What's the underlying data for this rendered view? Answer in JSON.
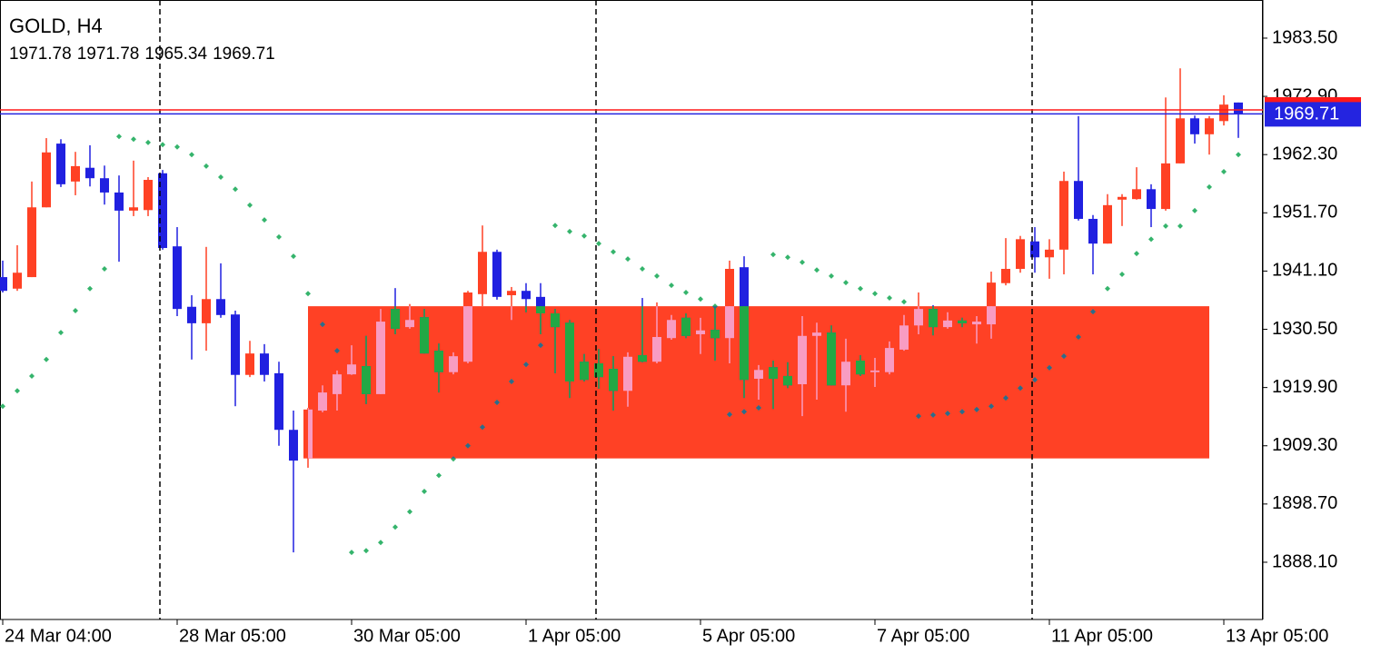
{
  "chart_data": {
    "type": "candlestick",
    "title": "GOLD, H4",
    "ohlc": [
      1971.78,
      1971.78,
      1965.34,
      1969.71
    ],
    "categories": [
      "24 Mar 04:00",
      null,
      null,
      null,
      null,
      null,
      null,
      null,
      null,
      null,
      null,
      null,
      "28 Mar 05:00",
      null,
      null,
      null,
      null,
      null,
      null,
      null,
      null,
      null,
      null,
      null,
      "30 Mar 05:00",
      null,
      null,
      null,
      null,
      null,
      null,
      null,
      null,
      null,
      null,
      null,
      "1 Apr 05:00",
      null,
      null,
      null,
      null,
      null,
      null,
      null,
      null,
      null,
      null,
      null,
      "5 Apr 05:00",
      null,
      null,
      null,
      null,
      null,
      null,
      null,
      null,
      null,
      null,
      null,
      "7 Apr 05:00",
      null,
      null,
      null,
      null,
      null,
      null,
      null,
      null,
      null,
      null,
      null,
      "11 Apr 05:00",
      null,
      null,
      null,
      null,
      null,
      null,
      null,
      null,
      null,
      null,
      null,
      "13 Apr 05:00",
      null
    ],
    "open": [
      1940.0,
      1937.9,
      1940.0,
      1952.7,
      1964.3,
      1957.4,
      1959.9,
      1958.0,
      1955.4,
      1952.1,
      1952.2,
      1958.9,
      1945.6,
      1934.6,
      1931.6,
      1936.0,
      1933.2,
      1922.2,
      1926.1,
      1922.5,
      1912.2,
      1907.0,
      1915.7,
      1918.7,
      1922.3,
      1923.8,
      1918.7,
      1934.2,
      1930.9,
      1932.7,
      1926.6,
      1922.7,
      1924.6,
      1936.9,
      1944.6,
      1936.7,
      1937.5,
      1936.4,
      1933.4,
      1931.7,
      1924.6,
      1924.3,
      1923.3,
      1919.3,
      1925.8,
      1924.6,
      1928.9,
      1932.6,
      1929.6,
      1930.4,
      1928.9,
      1941.8,
      1921.5,
      1923.6,
      1922.0,
      1920.5,
      1929.3,
      1929.9,
      1920.3,
      1924.8,
      1922.7,
      1922.7,
      1926.8,
      1931.2,
      1934.2,
      1930.9,
      1932.1,
      1931.4,
      1931.4,
      1938.9,
      1941.5,
      1946.5,
      1943.6,
      1945.0,
      1957.5,
      1950.6,
      1946.1,
      1954.1,
      1954.2,
      1956.0,
      1952.4,
      1960.7,
      1968.9,
      1966.0,
      1968.4,
      1971.78
    ],
    "high": [
      1943.0,
      1945.8,
      1957.4,
      1965.3,
      1965.1,
      1962.8,
      1964.0,
      1960.3,
      1958.5,
      1961.2,
      1958.2,
      1959.5,
      1949.1,
      1936.7,
      1945.5,
      1942.5,
      1933.9,
      1928.4,
      1927.8,
      1924.6,
      1915.7,
      1916.2,
      1920.3,
      1923.0,
      1927.6,
      1929.3,
      1934.2,
      1938.0,
      1935.1,
      1934.2,
      1927.9,
      1926.3,
      1937.5,
      1949.4,
      1945.0,
      1938.2,
      1938.9,
      1938.9,
      1934.2,
      1932.2,
      1926.0,
      1926.9,
      1925.6,
      1926.3,
      1936.2,
      1935.4,
      1933.1,
      1933.4,
      1932.6,
      1934.6,
      1943.0,
      1943.8,
      1924.0,
      1924.8,
      1924.5,
      1932.9,
      1931.7,
      1931.2,
      1928.8,
      1925.8,
      1925.3,
      1928.3,
      1933.1,
      1937.2,
      1934.9,
      1933.6,
      1932.6,
      1932.9,
      1941.0,
      1947.1,
      1947.5,
      1949.1,
      1946.9,
      1959.2,
      1969.3,
      1951.3,
      1955.1,
      1955.1,
      1960.0,
      1956.9,
      1972.7,
      1978.0,
      1969.4,
      1969.3,
      1973.1,
      1971.78
    ],
    "low": [
      1937.2,
      1937.5,
      1940.0,
      1952.7,
      1956.4,
      1954.9,
      1956.5,
      1953.2,
      1942.8,
      1951.1,
      1951.1,
      1945.0,
      1932.9,
      1925.0,
      1926.6,
      1932.6,
      1916.5,
      1921.8,
      1921.0,
      1909.3,
      1889.9,
      1905.3,
      1915.4,
      1915.7,
      1922.2,
      1916.9,
      1918.7,
      1929.6,
      1930.6,
      1926.1,
      1919.0,
      1922.3,
      1924.3,
      1934.7,
      1935.9,
      1932.2,
      1933.6,
      1929.6,
      1922.5,
      1918.0,
      1921.0,
      1919.7,
      1915.7,
      1916.4,
      1924.5,
      1924.3,
      1928.6,
      1928.9,
      1926.0,
      1924.8,
      1924.3,
      1918.0,
      1917.7,
      1916.0,
      1919.8,
      1914.7,
      1917.7,
      1920.3,
      1915.5,
      1922.0,
      1920.0,
      1922.3,
      1926.6,
      1929.6,
      1929.4,
      1930.6,
      1930.9,
      1927.9,
      1928.8,
      1938.5,
      1940.8,
      1940.8,
      1939.7,
      1940.5,
      1950.3,
      1940.5,
      1946.1,
      1949.3,
      1954.1,
      1949.1,
      1952.1,
      1960.7,
      1964.3,
      1962.3,
      1967.6,
      1965.34
    ],
    "close": [
      1937.5,
      1940.8,
      1952.7,
      1962.7,
      1956.9,
      1960.2,
      1958.0,
      1955.4,
      1952.1,
      1952.7,
      1957.7,
      1945.3,
      1934.2,
      1931.6,
      1936.0,
      1933.1,
      1922.2,
      1926.1,
      1922.2,
      1912.2,
      1906.6,
      1915.9,
      1919.0,
      1922.3,
      1924.1,
      1918.7,
      1931.9,
      1930.6,
      1932.2,
      1926.1,
      1922.7,
      1925.6,
      1937.2,
      1944.6,
      1936.4,
      1937.5,
      1936.0,
      1933.4,
      1930.9,
      1921.0,
      1921.3,
      1921.8,
      1919.3,
      1925.5,
      1924.6,
      1929.1,
      1932.2,
      1929.3,
      1930.3,
      1928.9,
      1941.5,
      1921.3,
      1923.1,
      1921.5,
      1920.3,
      1929.3,
      1929.9,
      1920.3,
      1924.6,
      1922.3,
      1923.0,
      1927.1,
      1931.2,
      1934.2,
      1930.9,
      1932.1,
      1931.6,
      1931.9,
      1939.0,
      1941.5,
      1946.9,
      1943.6,
      1945.0,
      1957.5,
      1950.6,
      1946.1,
      1953.1,
      1954.6,
      1956.0,
      1952.4,
      1960.7,
      1968.9,
      1966.0,
      1968.9,
      1971.4,
      1969.71
    ],
    "up_color": "#ff4124",
    "down_color": "#2020e0",
    "sar": {
      "color": "#35b46c",
      "values": [
        1916.5,
        1919.3,
        1922.0,
        1925.0,
        1929.9,
        1933.9,
        1937.9,
        1941.5,
        1965.6,
        1965.1,
        1964.5,
        1964.1,
        1963.7,
        1962.3,
        1960.2,
        1958.2,
        1956.0,
        1953.1,
        1950.4,
        1947.3,
        1943.8,
        1937.0,
        1931.4,
        1926.6,
        1889.9,
        1890.2,
        1891.7,
        1894.5,
        1897.3,
        1901.0,
        1903.9,
        1906.9,
        1909.3,
        1912.7,
        1917.2,
        1921.0,
        1924.1,
        1927.6,
        1949.4,
        1948.3,
        1947.5,
        1946.1,
        1944.6,
        1943.3,
        1941.5,
        1940.2,
        1938.5,
        1937.2,
        1936.0,
        1934.7,
        1915.0,
        1915.5,
        1916.2,
        1944.1,
        1943.6,
        1942.7,
        1941.3,
        1940.2,
        1939.0,
        1937.9,
        1937.0,
        1936.2,
        1935.5,
        1914.7,
        1914.9,
        1915.2,
        1915.5,
        1915.9,
        1916.5,
        1918.0,
        1919.8,
        1921.3,
        1923.5,
        1925.6,
        1929.1,
        1933.7,
        1937.9,
        1940.5,
        1944.3,
        1946.9,
        1949.3,
        1949.3,
        1952.1,
        1956.4,
        1959.2,
        1962.3
      ]
    },
    "zone": {
      "top": 1934.7,
      "bottom": 1907.0,
      "color": "#ff4125",
      "up_color_inside": "#f89cc2",
      "down_color_inside": "#22a845",
      "dot_color_inside": "#2d6a8c"
    },
    "ask": 1970.44,
    "ask_color": "#ff1a1a",
    "price_color": "#2424e0",
    "ylim": [
      1877.68,
      1990.44
    ],
    "yticks": [
      {
        "value": 1983.5,
        "label": "1983.50"
      },
      {
        "value": 1972.9,
        "label": "1972.90"
      },
      {
        "value": 1962.3,
        "label": "1962.30"
      },
      {
        "value": 1951.7,
        "label": "1951.70"
      },
      {
        "value": 1941.1,
        "label": "1941.10"
      },
      {
        "value": 1930.5,
        "label": "1930.50"
      },
      {
        "value": 1919.9,
        "label": "1919.90"
      },
      {
        "value": 1909.3,
        "label": "1909.30"
      },
      {
        "value": 1898.7,
        "label": "1898.70"
      },
      {
        "value": 1888.1,
        "label": "1888.10"
      }
    ]
  }
}
